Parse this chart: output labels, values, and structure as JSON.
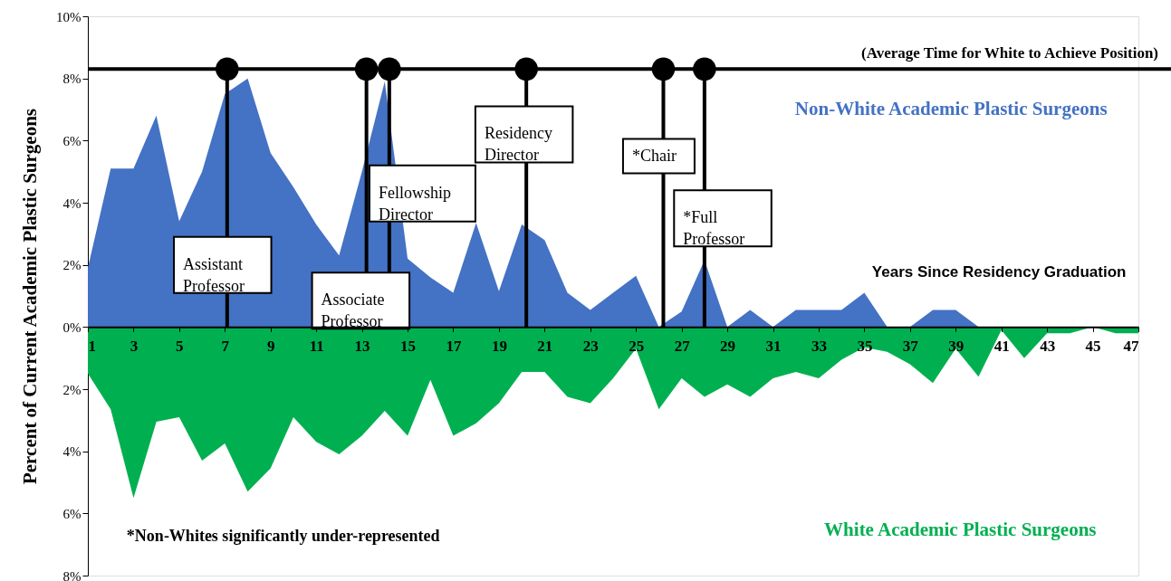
{
  "chart_data": {
    "type": "area",
    "ylabel": "Percent of Current Academic Plastic Surgeons",
    "xlabel": "Years Since Residency Graduation",
    "x": [
      1,
      2,
      3,
      4,
      5,
      6,
      7,
      8,
      9,
      10,
      11,
      12,
      13,
      14,
      15,
      16,
      17,
      18,
      19,
      20,
      21,
      22,
      23,
      24,
      25,
      26,
      27,
      28,
      29,
      30,
      31,
      32,
      33,
      34,
      35,
      36,
      37,
      38,
      39,
      40,
      41,
      42,
      43,
      44,
      45,
      46,
      47
    ],
    "series": [
      {
        "name": "Non-White Academic Plastic Surgeons",
        "color": "#4472c4",
        "values": [
          1.9,
          5.1,
          5.1,
          6.8,
          3.4,
          5.0,
          7.5,
          8.0,
          5.6,
          4.5,
          3.3,
          2.3,
          5.0,
          7.9,
          2.2,
          1.6,
          1.1,
          3.35,
          1.15,
          3.3,
          2.8,
          1.1,
          0.55,
          1.1,
          1.65,
          0,
          0.5,
          2.15,
          0,
          0.55,
          0,
          0.55,
          0.55,
          0.55,
          1.1,
          0,
          0,
          0.55,
          0.55,
          0,
          0,
          0,
          0,
          0,
          0,
          0,
          0
        ]
      },
      {
        "name": "White Academic Plastic Surgeons",
        "color": "#00b050",
        "values": [
          -1.5,
          -2.65,
          -5.5,
          -3.05,
          -2.9,
          -4.3,
          -3.75,
          -5.3,
          -4.55,
          -2.9,
          -3.7,
          -4.1,
          -3.5,
          -2.7,
          -3.5,
          -1.7,
          -3.5,
          -3.1,
          -2.45,
          -1.45,
          -1.45,
          -2.25,
          -2.45,
          -1.65,
          -0.7,
          -2.65,
          -1.65,
          -2.25,
          -1.85,
          -2.25,
          -1.65,
          -1.45,
          -1.65,
          -1.05,
          -0.65,
          -0.8,
          -1.2,
          -1.8,
          -0.7,
          -1.6,
          -0.1,
          -1.0,
          -0.2,
          -0.2,
          0,
          -0.2,
          -0.2
        ]
      },
      {
        "type": "scatter",
        "marker": "circle",
        "color": "#000000",
        "x": [
          7.1,
          13.2,
          14.2,
          20.2,
          26.2,
          28.0
        ],
        "values": [
          8.3,
          8.3,
          8.3,
          8.3,
          8.3,
          8.3
        ]
      }
    ],
    "xlim": [
      1,
      47
    ],
    "xticks": [
      1,
      3,
      5,
      7,
      9,
      11,
      13,
      15,
      17,
      19,
      21,
      23,
      25,
      27,
      29,
      31,
      33,
      35,
      37,
      39,
      41,
      43,
      45,
      47
    ],
    "ylim": [
      -8,
      10
    ],
    "yticks": [
      {
        "value": 10,
        "label": "10%"
      },
      {
        "value": 8,
        "label": "8%"
      },
      {
        "value": 6,
        "label": "6%"
      },
      {
        "value": 4,
        "label": "4%"
      },
      {
        "value": 2,
        "label": "2%"
      },
      {
        "value": 0,
        "label": "0%"
      },
      {
        "value": -2,
        "label": "2%"
      },
      {
        "value": -4,
        "label": "4%"
      },
      {
        "value": -6,
        "label": "6%"
      },
      {
        "value": -8,
        "label": "8%"
      }
    ],
    "ref_lines": [
      {
        "axis": "y",
        "value": 8.3,
        "label": "(Average Time for White to Achieve Position)"
      },
      {
        "axis": "x",
        "value": 7.1,
        "label": "Assistant Professor"
      },
      {
        "axis": "x",
        "value": 13.2,
        "label": "Associate Professor"
      },
      {
        "axis": "x",
        "value": 14.2,
        "label": "Fellowship Director"
      },
      {
        "axis": "x",
        "value": 20.2,
        "label": "Residency Director"
      },
      {
        "axis": "x",
        "value": 26.2,
        "label": "*Chair"
      },
      {
        "axis": "x",
        "value": 28.0,
        "label": "*Full Professor"
      }
    ],
    "annotations": [
      "*Non-Whites significantly under-represented"
    ],
    "grid": false,
    "legend": false
  }
}
